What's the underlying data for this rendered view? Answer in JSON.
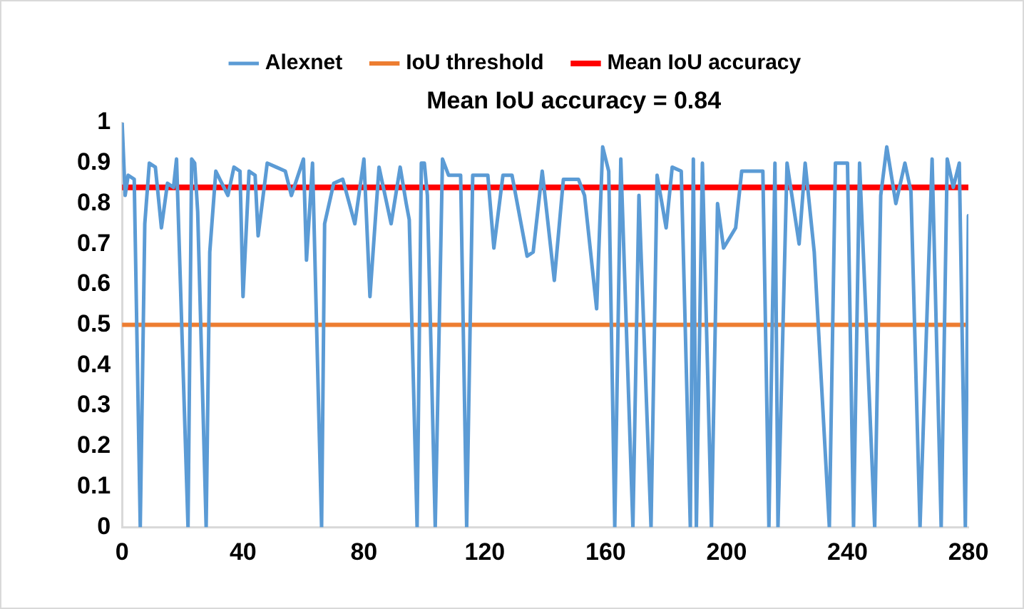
{
  "chart_data": {
    "type": "line",
    "annotations": [
      "Mean IoU accuracy = 0.84"
    ],
    "xlim": [
      0,
      280
    ],
    "xticks": [
      0,
      40,
      80,
      120,
      160,
      200,
      240,
      280
    ],
    "ylim": [
      0,
      1
    ],
    "yticks": [
      0,
      0.1,
      0.2,
      0.3,
      0.4,
      0.5,
      0.6,
      0.7,
      0.8,
      0.9,
      1
    ],
    "grid": false,
    "legend": "top",
    "marker": "none",
    "line_style": "solid",
    "series": [
      {
        "name": "Alexnet",
        "color": "#5b9bd5",
        "x": [
          0,
          1,
          2,
          4,
          6,
          7.5,
          9,
          11,
          13,
          15,
          17,
          18,
          21.8,
          23,
          24,
          25,
          27.8,
          29,
          31,
          35,
          37,
          39,
          40,
          42,
          44,
          45,
          48,
          51,
          54,
          56,
          60,
          61,
          63,
          66,
          67,
          70,
          73,
          77,
          80,
          82,
          85,
          89,
          92,
          94,
          95,
          97.6,
          99,
          100,
          101,
          103.6,
          106,
          108,
          112,
          114,
          116,
          121,
          123,
          126,
          129,
          134,
          136,
          139,
          143,
          146,
          151,
          153,
          157,
          159,
          161,
          163,
          165,
          169,
          171,
          175,
          177,
          180,
          182,
          185,
          188,
          189,
          190,
          192,
          195,
          197,
          199,
          203,
          205,
          212,
          214,
          216,
          217,
          220,
          224,
          226,
          229,
          234,
          236,
          240,
          242,
          244,
          249,
          251,
          253,
          256,
          259,
          261,
          264,
          268,
          271,
          273,
          275,
          277,
          279,
          280
        ],
        "values": [
          1,
          0.82,
          0.87,
          0.86,
          0,
          0.75,
          0.9,
          0.89,
          0.74,
          0.85,
          0.84,
          0.91,
          0,
          0.91,
          0.9,
          0.78,
          0,
          0.68,
          0.88,
          0.82,
          0.89,
          0.88,
          0.57,
          0.88,
          0.87,
          0.72,
          0.9,
          0.89,
          0.88,
          0.82,
          0.91,
          0.66,
          0.9,
          0,
          0.75,
          0.85,
          0.86,
          0.75,
          0.91,
          0.57,
          0.89,
          0.75,
          0.89,
          0.8,
          0.76,
          0,
          0.9,
          0.9,
          0.82,
          0,
          0.91,
          0.87,
          0.87,
          0,
          0.87,
          0.87,
          0.69,
          0.87,
          0.87,
          0.67,
          0.68,
          0.88,
          0.61,
          0.86,
          0.86,
          0.82,
          0.54,
          0.94,
          0.88,
          0,
          0.91,
          0,
          0.82,
          0,
          0.87,
          0.74,
          0.89,
          0.88,
          0,
          0.91,
          0,
          0.9,
          0,
          0.8,
          0.69,
          0.74,
          0.88,
          0.88,
          0,
          0.9,
          0,
          0.9,
          0.7,
          0.9,
          0.68,
          0,
          0.9,
          0.9,
          0,
          0.9,
          0,
          0.82,
          0.94,
          0.8,
          0.9,
          0.83,
          0,
          0.91,
          0,
          0.91,
          0.84,
          0.9,
          0,
          0.77
        ]
      },
      {
        "name": "IoU threshold",
        "color": "#ed7d31",
        "x": [
          0,
          280
        ],
        "values": [
          0.5,
          0.5
        ]
      },
      {
        "name": "Mean IoU accuracy",
        "color": "#ff0000",
        "x": [
          0,
          280
        ],
        "values": [
          0.84,
          0.84
        ]
      }
    ]
  }
}
